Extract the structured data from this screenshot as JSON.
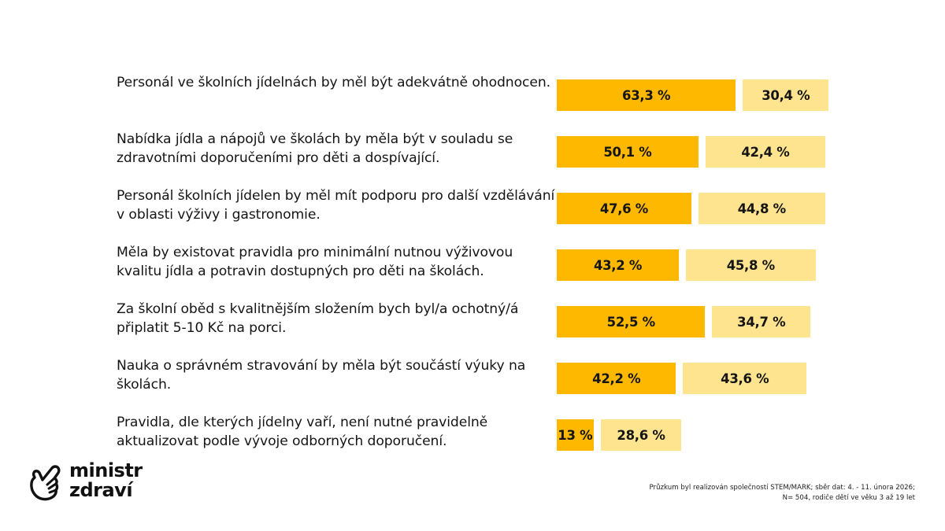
{
  "colors": {
    "primary_bar": "#FFB800",
    "secondary_bar": "#FFE48F",
    "text": "#151515"
  },
  "logo": {
    "icon": "pointing-hand-icon",
    "line1": "ministr",
    "line2": "zdraví"
  },
  "footnote": {
    "line1": "Průzkum byl realizován společností STEM/MARK; sběr dat: 4. - 11. února 2026;",
    "line2": "N= 504, rodiče dětí ve věku 3 až 19 let"
  },
  "chart_data": {
    "type": "bar",
    "orientation": "horizontal",
    "stacked": false,
    "title": "",
    "xlabel": "",
    "ylabel": "",
    "xlim": [
      0,
      100
    ],
    "grid": false,
    "legend": "none",
    "categories": [
      "Personál ve školních jídelnách by měl být adekvátně ohodnocen.",
      "Nabídka jídla a nápojů ve školách by měla být v souladu se zdravotními doporučeními pro děti a dospívající.",
      "Personál školních jídelen by měl mít podporu pro další vzdělávání v oblasti výživy i gastronomie.",
      "Měla by existovat pravidla pro minimální nutnou výživovou kvalitu jídla a potravin dostupných pro děti na školách.",
      "Za školní oběd s kvalitnějším složením bych byl/a ochotný/á připlatit 5-10 Kč na porci.",
      "Nauka o správném stravování by měla být součástí výuky na školách.",
      "Pravidla, dle kterých jídelny vaří, není nutné pravidelně aktualizovat podle vývoje odborných doporučení."
    ],
    "series": [
      {
        "name": "primary",
        "color": "#FFB800",
        "values": [
          63.3,
          50.1,
          47.6,
          43.2,
          52.5,
          42.2,
          13
        ],
        "labels": [
          "63,3 %",
          "50,1 %",
          "47,6 %",
          "43,2 %",
          "52,5 %",
          "42,2 %",
          "13 %"
        ]
      },
      {
        "name": "secondary",
        "color": "#FFE48F",
        "values": [
          30.4,
          42.4,
          44.8,
          45.8,
          34.7,
          43.6,
          28.6
        ],
        "labels": [
          "30,4 %",
          "42,4 %",
          "44,8 %",
          "45,8 %",
          "34,7 %",
          "43,6 %",
          "28,6 %"
        ]
      }
    ]
  }
}
